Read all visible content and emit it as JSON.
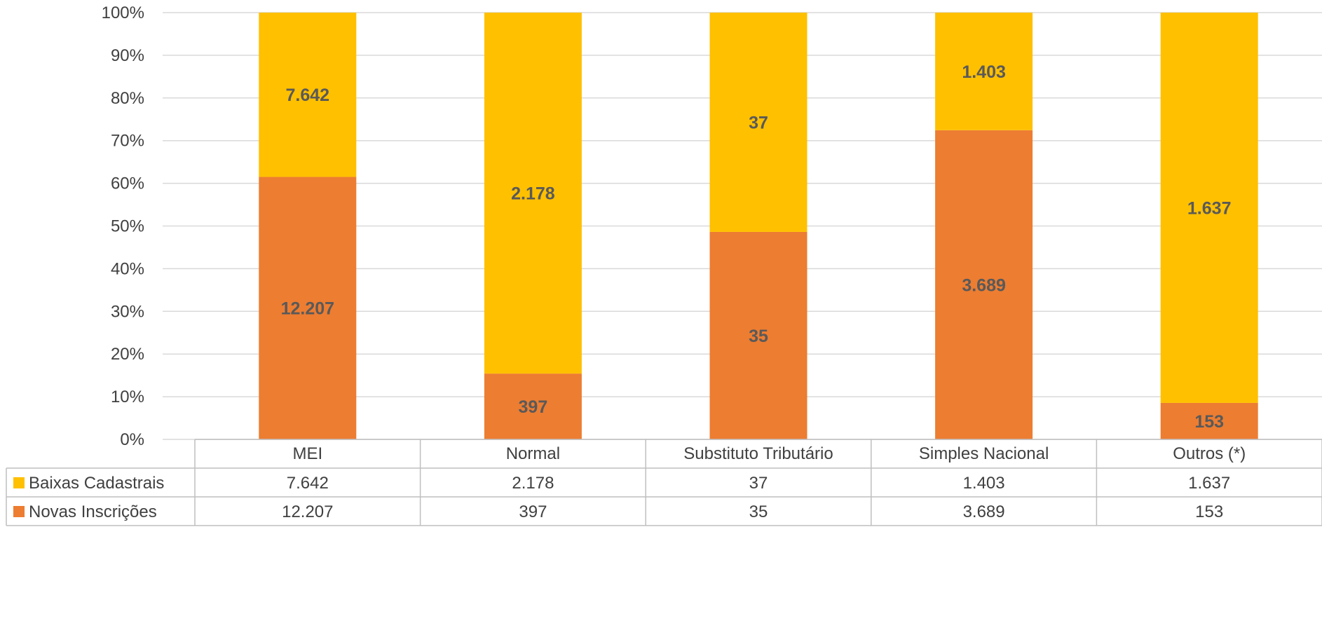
{
  "chart_data": {
    "type": "bar",
    "stacking": "percent",
    "categories": [
      "MEI",
      "Normal",
      "Substituto Tributário",
      "Simples Nacional",
      "Outros (*)"
    ],
    "series": [
      {
        "name": "Novas Inscrições",
        "values": [
          12207,
          397,
          35,
          3689,
          153
        ],
        "labels": [
          "12.207",
          "397",
          "35",
          "3.689",
          "153"
        ],
        "color": "#ED7D31"
      },
      {
        "name": "Baixas Cadastrais",
        "values": [
          7642,
          2178,
          37,
          1403,
          1637
        ],
        "labels": [
          "7.642",
          "2.178",
          "37",
          "1.403",
          "1.637"
        ],
        "color": "#FFC000"
      }
    ],
    "y_ticks": [
      "0%",
      "10%",
      "20%",
      "30%",
      "40%",
      "50%",
      "60%",
      "70%",
      "80%",
      "90%",
      "100%"
    ],
    "ylim": [
      0,
      100
    ],
    "grid": true,
    "legend": "data-table-below",
    "table_rows": [
      "Baixas Cadastrais",
      "Novas Inscrições"
    ]
  }
}
